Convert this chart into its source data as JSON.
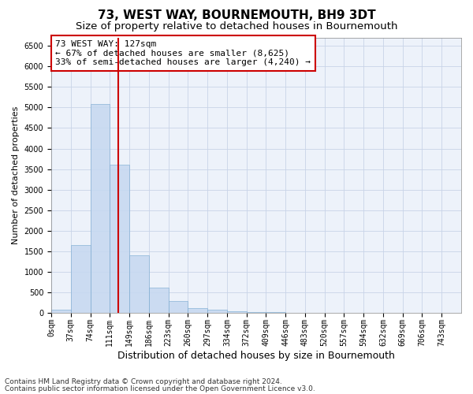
{
  "title": "73, WEST WAY, BOURNEMOUTH, BH9 3DT",
  "subtitle": "Size of property relative to detached houses in Bournemouth",
  "xlabel": "Distribution of detached houses by size in Bournemouth",
  "ylabel": "Number of detached properties",
  "bin_labels": [
    "0sqm",
    "37sqm",
    "74sqm",
    "111sqm",
    "149sqm",
    "186sqm",
    "223sqm",
    "260sqm",
    "297sqm",
    "334sqm",
    "372sqm",
    "409sqm",
    "446sqm",
    "483sqm",
    "520sqm",
    "557sqm",
    "594sqm",
    "632sqm",
    "669sqm",
    "706sqm",
    "743sqm"
  ],
  "bar_values": [
    80,
    1650,
    5080,
    3600,
    1400,
    620,
    300,
    130,
    90,
    55,
    30,
    20,
    10,
    8,
    6,
    5,
    5,
    5,
    5,
    5,
    5
  ],
  "bar_color": "#c5d8f0",
  "bar_edge_color": "#7aaad0",
  "bar_alpha": 0.85,
  "vline_x": 127,
  "bin_width": 37,
  "ylim": [
    0,
    6700
  ],
  "yticks": [
    0,
    500,
    1000,
    1500,
    2000,
    2500,
    3000,
    3500,
    4000,
    4500,
    5000,
    5500,
    6000,
    6500
  ],
  "vline_color": "#cc0000",
  "grid_color": "#c8d4e8",
  "background_color": "#edf2fa",
  "annotation_text": "73 WEST WAY: 127sqm\n← 67% of detached houses are smaller (8,625)\n33% of semi-detached houses are larger (4,240) →",
  "annotation_box_color": "#ffffff",
  "annotation_box_edge": "#cc0000",
  "footer_line1": "Contains HM Land Registry data © Crown copyright and database right 2024.",
  "footer_line2": "Contains public sector information licensed under the Open Government Licence v3.0.",
  "title_fontsize": 11,
  "subtitle_fontsize": 9.5,
  "xlabel_fontsize": 9,
  "ylabel_fontsize": 8,
  "tick_fontsize": 7,
  "annotation_fontsize": 8,
  "footer_fontsize": 6.5
}
